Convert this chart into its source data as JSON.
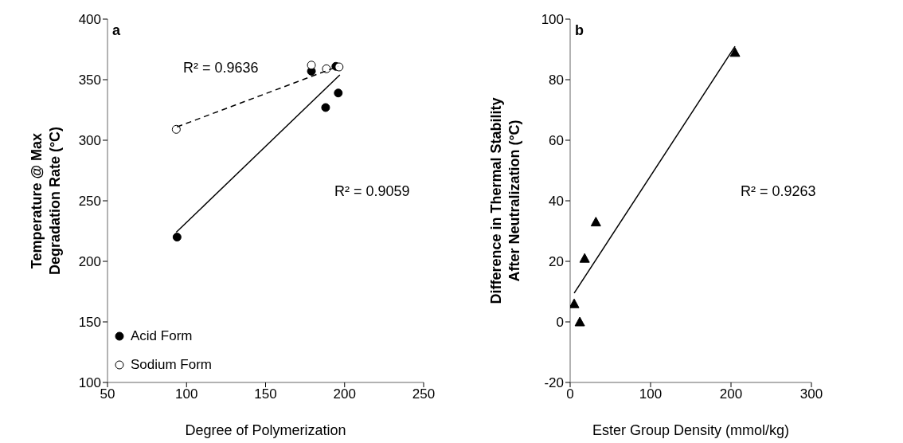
{
  "chart_data": [
    {
      "type": "scatter",
      "title": "a",
      "xlabel": "Degree of Polymerization",
      "ylabel": "Temperature @ Max Degradation Rate (°C)",
      "xlim": [
        50,
        250
      ],
      "xticks": [
        50,
        100,
        150,
        200,
        250
      ],
      "ylim": [
        100,
        400
      ],
      "yticks": [
        100,
        150,
        200,
        250,
        300,
        350,
        400
      ],
      "legend": "bottom left",
      "annotations": [
        "R² = 0.9636",
        "R² = 0.9059"
      ],
      "series": [
        {
          "name": "Acid Form",
          "type": "scatter",
          "marker": "circle",
          "color": "#000000",
          "x": [
            94,
            179,
            188,
            194.5,
            196
          ],
          "values": [
            220,
            357,
            327,
            361,
            339
          ]
        },
        {
          "name": "Sodium Form",
          "type": "scatter",
          "marker": "circle",
          "color": "#ffffff",
          "x": [
            93.5,
            179,
            188.5,
            196.5
          ],
          "values": [
            309,
            362,
            359,
            360.5
          ]
        },
        {
          "type": "line",
          "marker": "none",
          "line_style": "solid",
          "color": "#000000",
          "x": [
            93.5,
            197
          ],
          "values": [
            224,
            354
          ]
        },
        {
          "type": "line",
          "marker": "none",
          "line_style": "dashed",
          "color": "#000000",
          "x": [
            94,
            196
          ],
          "values": [
            311,
            361
          ]
        }
      ]
    },
    {
      "type": "scatter",
      "title": "b",
      "xlabel": "Ester Group Density (mmol/kg)",
      "ylabel": "Difference in Thermal Stability  After Neutralization (°C)",
      "xlim": [
        0,
        300
      ],
      "xticks": [
        0,
        100,
        200,
        300
      ],
      "ylim": [
        -20,
        100
      ],
      "yticks": [
        -20,
        0,
        20,
        40,
        60,
        80,
        100
      ],
      "annotations": [
        "R² = 0.9263"
      ],
      "series": [
        {
          "type": "scatter",
          "marker": "triangle",
          "color": "#000000",
          "x": [
            5,
            12,
            18,
            32,
            205
          ],
          "values": [
            6,
            0,
            21,
            33,
            89
          ]
        },
        {
          "type": "line",
          "marker": "none",
          "line_style": "solid",
          "color": "#000000",
          "x": [
            5,
            205
          ],
          "values": [
            9.5,
            91
          ]
        }
      ]
    }
  ]
}
